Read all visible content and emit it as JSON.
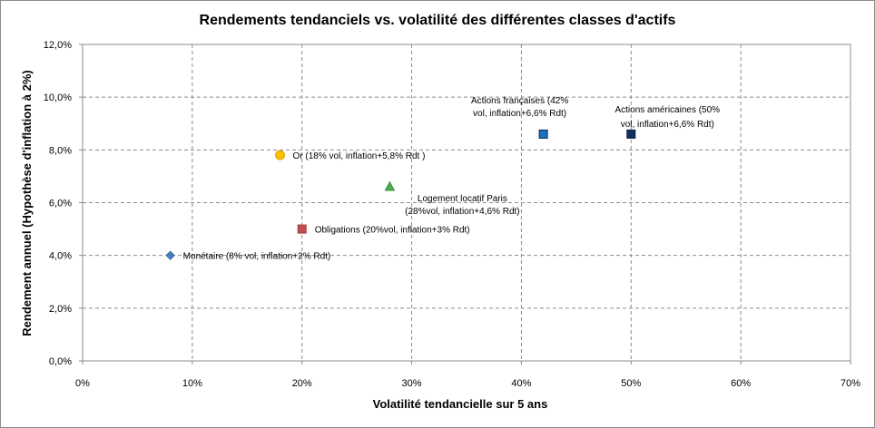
{
  "chart_data": {
    "type": "scatter",
    "title": "Rendements tendanciels vs. volatilité des différentes classes d'actifs",
    "xlabel": "Volatilité tendancielle sur 5 ans",
    "ylabel": "Rendement annuel (Hypothèse d'inflation à 2%)",
    "xlim": [
      0,
      0.7
    ],
    "ylim": [
      0,
      0.12
    ],
    "x_ticks": [
      {
        "value": 0,
        "label": "0%"
      },
      {
        "value": 0.1,
        "label": "10%"
      },
      {
        "value": 0.2,
        "label": "20%"
      },
      {
        "value": 0.3,
        "label": "30%"
      },
      {
        "value": 0.4,
        "label": "40%"
      },
      {
        "value": 0.5,
        "label": "50%"
      },
      {
        "value": 0.6,
        "label": "60%"
      },
      {
        "value": 0.7,
        "label": "70%"
      }
    ],
    "y_ticks": [
      {
        "value": 0,
        "label": "0,0%"
      },
      {
        "value": 0.02,
        "label": "2,0%"
      },
      {
        "value": 0.04,
        "label": "4,0%"
      },
      {
        "value": 0.06,
        "label": "6,0%"
      },
      {
        "value": 0.08,
        "label": "8,0%"
      },
      {
        "value": 0.1,
        "label": "10,0%"
      },
      {
        "value": 0.12,
        "label": "12,0%"
      }
    ],
    "grid": true,
    "legend": "none",
    "points": [
      {
        "id": "monetaire",
        "x": 0.08,
        "y": 0.04,
        "marker": "diamond",
        "color": "#4a7ebb",
        "stroke": "#3a6aa3",
        "label_lines": [
          "Monétaire (8% vol, inflation+2% Rdt)"
        ],
        "label_anchor": "start",
        "label_pos": "right"
      },
      {
        "id": "or",
        "x": 0.18,
        "y": 0.078,
        "marker": "circle",
        "color": "#ffc000",
        "stroke": "#d9a300",
        "label_lines": [
          "Or (18% vol, inflation+5,8% Rdt )"
        ],
        "label_anchor": "start",
        "label_pos": "right"
      },
      {
        "id": "obligations",
        "x": 0.2,
        "y": 0.05,
        "marker": "square",
        "color": "#c0504d",
        "stroke": "#a03f3c",
        "label_lines": [
          "Obligations (20%vol, inflation+3% Rdt)"
        ],
        "label_anchor": "start",
        "label_pos": "right"
      },
      {
        "id": "logement",
        "x": 0.28,
        "y": 0.066,
        "marker": "triangle",
        "color": "#4ead4e",
        "stroke": "#3a8f3a",
        "label_lines": [
          "Logement locatif Paris",
          "(28%vol, inflation+4,6% Rdt)"
        ],
        "label_anchor": "middle",
        "label_pos": "below-right"
      },
      {
        "id": "actions-francaises",
        "x": 0.42,
        "y": 0.086,
        "marker": "square",
        "color": "#1f6fc4",
        "stroke": "#0b2a55",
        "label_lines": [
          "Actions françaises (42%",
          "vol, inflation+6,6% Rdt)"
        ],
        "label_anchor": "middle",
        "label_pos": "above-left"
      },
      {
        "id": "actions-americaines",
        "x": 0.5,
        "y": 0.086,
        "marker": "square",
        "color": "#0f2e63",
        "stroke": "#071a3c",
        "label_lines": [
          "Actions américaines (50%",
          "vol, inflation+6,6% Rdt)"
        ],
        "label_anchor": "middle",
        "label_pos": "above-right"
      }
    ]
  }
}
